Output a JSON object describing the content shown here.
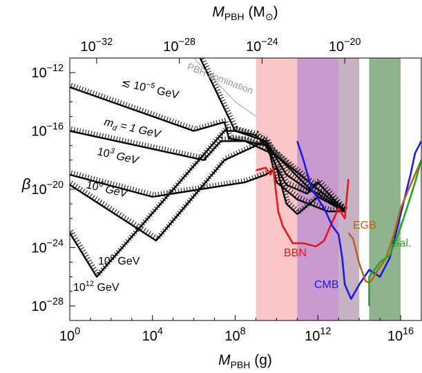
{
  "chart_data": {
    "type": "line",
    "xscale": "log",
    "yscale": "log",
    "xlabel_main": "M",
    "xlabel_sub": "PBH",
    "xlabel_unit": "(g)",
    "x2label_main": "M",
    "x2label_sub": "PBH",
    "x2label_unit": "(M",
    "x2label_unit_end": ")",
    "ylabel": "β",
    "xlim": [
      1,
      1e+17
    ],
    "ylim": [
      1e-29,
      1e-11
    ],
    "x_ticks": [
      {
        "v": 1,
        "base": "10",
        "exp": "0"
      },
      {
        "v": 10000.0,
        "base": "10",
        "exp": "4"
      },
      {
        "v": 100000000.0,
        "base": "10",
        "exp": "8"
      },
      {
        "v": 1000000000000.0,
        "base": "10",
        "exp": "12"
      },
      {
        "v": 1e+16,
        "base": "10",
        "exp": "16"
      }
    ],
    "x2_ticks": [
      {
        "v": 1e-32,
        "base": "10",
        "exp": "−32"
      },
      {
        "v": 1e-28,
        "base": "10",
        "exp": "−28"
      },
      {
        "v": 1e-24,
        "base": "10",
        "exp": "−24"
      },
      {
        "v": 1e-20,
        "base": "10",
        "exp": "−20"
      }
    ],
    "y_ticks": [
      {
        "v": 1e-12,
        "base": "10",
        "exp": "−12"
      },
      {
        "v": 1e-16,
        "base": "10",
        "exp": "−16"
      },
      {
        "v": 1e-20,
        "base": "10",
        "exp": "−20"
      },
      {
        "v": 1e-24,
        "base": "10",
        "exp": "−24"
      },
      {
        "v": 1e-28,
        "base": "10",
        "exp": "−28"
      }
    ],
    "shaded_regions": [
      {
        "name": "BBN",
        "x": [
          1000000000.0,
          10000000000000.0
        ],
        "color": "#f7b4b4",
        "opacity": 0.75
      },
      {
        "name": "CMB",
        "x": [
          100000000000.0,
          10000000000000.0
        ],
        "color": "#b889d2",
        "opacity": 0.75
      },
      {
        "name": "EGB",
        "x": [
          10000000000000.0,
          100000000000000.0
        ],
        "color": "#b99db5",
        "opacity": 0.8
      },
      {
        "name": "Gal.",
        "x": [
          300000000000000.0,
          1e+16
        ],
        "color": "#7da47a",
        "opacity": 0.85
      }
    ],
    "constraint_curves": [
      {
        "name": "BBN",
        "color": "#e8161a",
        "label": "BBN",
        "points": [
          [
            1000000000.0,
            2e-19
          ],
          [
            3000000000.0,
            3e-19
          ],
          [
            5000000000.0,
            1e-19
          ],
          [
            7000000000.0,
            2.5e-19
          ],
          [
            12000000000.0,
            3e-22
          ],
          [
            20000000000.0,
            3e-23
          ],
          [
            60000000000.0,
            2e-24
          ],
          [
            200000000000.0,
            2e-24
          ],
          [
            800000000000.0,
            1.2e-24
          ],
          [
            2000000000000.0,
            3e-24
          ],
          [
            4000000000000.0,
            3e-23
          ],
          [
            10000000000000.0,
            5e-22
          ],
          [
            20000000000000.0,
            1e-22
          ],
          [
            30000000000000.0,
            5e-20
          ]
        ]
      },
      {
        "name": "CMB",
        "color": "#1a1ae0",
        "label": "CMB",
        "points": [
          [
            100000000000.0,
            2e-17
          ],
          [
            200000000000.0,
            1e-18
          ],
          [
            500000000000.0,
            1e-20
          ],
          [
            2000000000000.0,
            5e-22
          ],
          [
            5000000000000.0,
            3e-23
          ],
          [
            10000000000000.0,
            8e-24
          ],
          [
            15000000000000.0,
            2e-25
          ],
          [
            20000000000000.0,
            3e-27
          ],
          [
            40000000000000.0,
            3e-28
          ],
          [
            100000000000000.0,
            3e-27
          ],
          [
            300000000000000.0,
            3e-26
          ],
          [
            1000000000000000.0,
            1e-26
          ],
          [
            3000000000000000.0,
            2e-25
          ],
          [
            1e+16,
            2e-22
          ],
          [
            3e+16,
            1e-19
          ],
          [
            5e+16,
            3e-18
          ],
          [
            1e+17,
            2e-17
          ]
        ]
      },
      {
        "name": "EGB",
        "color": "#b5641b",
        "label": "EGB",
        "points": [
          [
            30000000000000.0,
            1e-23
          ],
          [
            50000000000000.0,
            4e-24
          ],
          [
            100000000000000.0,
            8e-26
          ],
          [
            200000000000000.0,
            5e-27
          ],
          [
            300000000000000.0,
            4e-27
          ],
          [
            400000000000000.0,
            6e-27
          ],
          [
            800000000000000.0,
            3e-26
          ],
          [
            2000000000000000.0,
            2e-25
          ],
          [
            5000000000000000.0,
            1e-23
          ],
          [
            1e+16,
            5e-22
          ],
          [
            3e+16,
            2e-20
          ],
          [
            1e+17,
            1e-18
          ]
        ]
      },
      {
        "name": "Gal.",
        "color": "#22a61e",
        "label": "Gal.",
        "points": [
          [
            300000000000000.0,
            1e-28
          ],
          [
            300000000000000.0,
            1e-26
          ],
          [
            1000000000000000.0,
            1e-25
          ],
          [
            3000000000000000.0,
            3e-25
          ],
          [
            8000000000000000.0,
            1e-23
          ],
          [
            2e+16,
            5e-22
          ],
          [
            5e+16,
            3e-20
          ],
          [
            1e+17,
            1e-18
          ]
        ]
      }
    ],
    "domination_line": {
      "label": "PBH domination",
      "color": "#b0b0b0",
      "points": [
        [
          1000000.0,
          1e-11
        ],
        [
          100000000.0,
          1e-14
        ],
        [
          1000000000.0,
          1e-15
        ]
      ]
    },
    "pbh_curves": [
      {
        "md_label": "≲ 10",
        "md_exp": "−5",
        "md_unit": " GeV",
        "points": [
          [
            2000000.0,
            1e-11
          ],
          [
            100000000.0,
            1e-16
          ],
          [
            1000000000.0,
            5e-17
          ],
          [
            1000000000000.0,
            3e-21
          ],
          [
            20000000000000.0,
            3e-22
          ]
        ]
      },
      {
        "md_label": "m",
        "md_sub": "d",
        "md_eq": " = 1 GeV",
        "points": [
          [
            1,
            1e-13
          ],
          [
            1000000.0,
            1e-16
          ],
          [
            30000000.0,
            4e-16
          ],
          [
            50000000.0,
            3e-17
          ],
          [
            300000000.0,
            2e-17
          ],
          [
            10000000000.0,
            2e-18
          ],
          [
            1000000000000.0,
            1e-20
          ],
          [
            20000000000000.0,
            3e-22
          ]
        ]
      },
      {
        "md_label": "10",
        "md_exp": "3",
        "md_unit": " GeV",
        "points": [
          [
            1,
            1e-16
          ],
          [
            3000000.0,
            1e-18
          ],
          [
            20000000.0,
            2e-17
          ],
          [
            300000000.0,
            2e-17
          ],
          [
            3000000000.0,
            1e-17
          ],
          [
            5000000000.0,
            2e-18
          ],
          [
            10000000000.0,
            3e-20
          ],
          [
            100000000000.0,
            2e-21
          ],
          [
            3000000000000.0,
            3e-22
          ],
          [
            20000000000000.0,
            3e-22
          ]
        ]
      },
      {
        "md_label": "10",
        "md_exp": "6",
        "md_unit": " GeV",
        "points": [
          [
            1,
            1e-19
          ],
          [
            10000.0,
            3e-21
          ],
          [
            300000000.0,
            3e-20
          ],
          [
            3000000000.0,
            1e-19
          ],
          [
            10000000000.0,
            3e-19
          ],
          [
            30000000000.0,
            1e-21
          ],
          [
            100000000000.0,
            2e-22
          ],
          [
            1000000000000.0,
            3e-21
          ],
          [
            20000000000000.0,
            3e-22
          ]
        ]
      },
      {
        "md_label": "10",
        "md_exp": "9",
        "md_unit": " GeV",
        "points": [
          [
            1,
            2e-20
          ],
          [
            15000.0,
            3e-24
          ],
          [
            30000000.0,
            1e-18
          ],
          [
            3000000000.0,
            2e-17
          ],
          [
            10000000000.0,
            3e-19
          ],
          [
            30000000000.0,
            2e-20
          ],
          [
            300000000000.0,
            5e-21
          ],
          [
            1000000000000.0,
            3e-20
          ],
          [
            20000000000000.0,
            3e-22
          ]
        ]
      },
      {
        "md_label": "10",
        "md_exp": "12",
        "md_unit": " GeV",
        "points": [
          [
            1,
            1e-23
          ],
          [
            20,
            1e-26
          ],
          [
            30000000.0,
            1e-16
          ],
          [
            100000000.0,
            1e-16
          ],
          [
            3000000000.0,
            2e-17
          ],
          [
            30000000000.0,
            1e-19
          ],
          [
            300000000000.0,
            1e-20
          ],
          [
            1000000000000.0,
            5e-21
          ],
          [
            20000000000000.0,
            3e-22
          ]
        ]
      }
    ],
    "annotations": [
      {
        "text": "BBN",
        "color": "#e8161a"
      },
      {
        "text": "CMB",
        "color": "#1a1ae0"
      },
      {
        "text": "EGB",
        "color": "#b5641b"
      },
      {
        "text": "Gal.",
        "color": "#22a61e"
      }
    ]
  }
}
